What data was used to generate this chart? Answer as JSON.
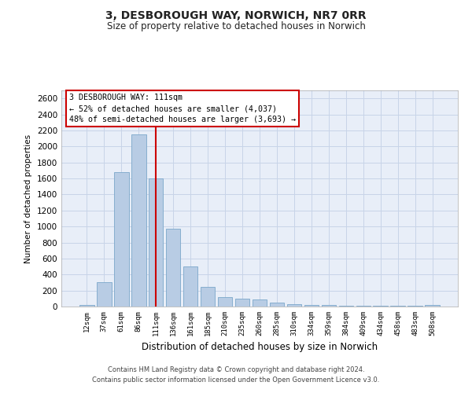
{
  "title_line1": "3, DESBOROUGH WAY, NORWICH, NR7 0RR",
  "title_line2": "Size of property relative to detached houses in Norwich",
  "xlabel": "Distribution of detached houses by size in Norwich",
  "ylabel": "Number of detached properties",
  "categories": [
    "12sqm",
    "37sqm",
    "61sqm",
    "86sqm",
    "111sqm",
    "136sqm",
    "161sqm",
    "185sqm",
    "210sqm",
    "235sqm",
    "260sqm",
    "285sqm",
    "310sqm",
    "334sqm",
    "359sqm",
    "384sqm",
    "409sqm",
    "434sqm",
    "458sqm",
    "483sqm",
    "508sqm"
  ],
  "values": [
    20,
    300,
    1680,
    2150,
    1600,
    970,
    500,
    245,
    120,
    100,
    85,
    45,
    25,
    20,
    15,
    12,
    10,
    8,
    5,
    5,
    15
  ],
  "bar_color": "#b8cce4",
  "bar_edge_color": "#7ba7ca",
  "highlight_index": 4,
  "highlight_line_color": "#cc0000",
  "ylim": [
    0,
    2700
  ],
  "yticks": [
    0,
    200,
    400,
    600,
    800,
    1000,
    1200,
    1400,
    1600,
    1800,
    2000,
    2200,
    2400,
    2600
  ],
  "annotation_text": "3 DESBOROUGH WAY: 111sqm\n← 52% of detached houses are smaller (4,037)\n48% of semi-detached houses are larger (3,693) →",
  "annotation_box_color": "#ffffff",
  "annotation_box_edge_color": "#cc0000",
  "footer_line1": "Contains HM Land Registry data © Crown copyright and database right 2024.",
  "footer_line2": "Contains public sector information licensed under the Open Government Licence v3.0.",
  "plot_bg_color": "#e8eef8",
  "fig_bg_color": "#ffffff",
  "grid_color": "#c8d4e8",
  "fig_width": 6.0,
  "fig_height": 5.0,
  "dpi": 100
}
